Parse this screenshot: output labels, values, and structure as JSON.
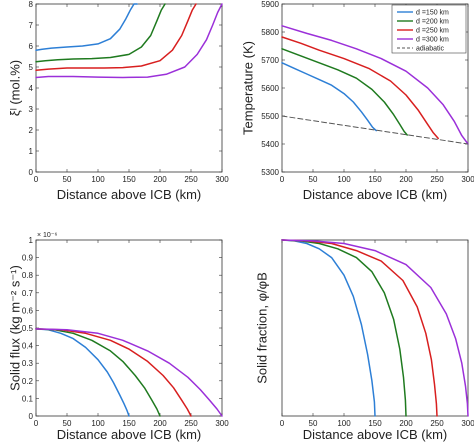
{
  "colors": {
    "d150": "#2d7fd6",
    "d200": "#1f7a1f",
    "d250": "#d81f1f",
    "d300": "#9b30d9",
    "adiabatic": "#555555"
  },
  "chart_data": [
    {
      "id": "composition",
      "type": "line",
      "xlabel": "Distance above ICB (km)",
      "ylabel": "ξˡ (mol.%)",
      "xlim": [
        0,
        300
      ],
      "ylim": [
        0,
        8
      ],
      "xticks": [
        "0",
        "50",
        "100",
        "150",
        "200",
        "250",
        "300"
      ],
      "yticks": [
        "0",
        "1",
        "2",
        "3",
        "4",
        "5",
        "6",
        "7",
        "8"
      ],
      "grid": false,
      "series": [
        {
          "key": "d150",
          "x": [
            0,
            10,
            25,
            50,
            75,
            100,
            120,
            135,
            145,
            152,
            158,
            163
          ],
          "y": [
            5.8,
            5.85,
            5.9,
            5.95,
            6.0,
            6.1,
            6.35,
            6.8,
            7.3,
            7.7,
            8.0,
            8.0
          ]
        },
        {
          "key": "d200",
          "x": [
            0,
            15,
            35,
            60,
            90,
            120,
            150,
            170,
            185,
            195,
            202,
            208
          ],
          "y": [
            5.25,
            5.3,
            5.35,
            5.38,
            5.4,
            5.45,
            5.6,
            5.95,
            6.5,
            7.2,
            7.7,
            8.0
          ]
        },
        {
          "key": "d250",
          "x": [
            0,
            20,
            50,
            80,
            110,
            140,
            170,
            200,
            220,
            235,
            245,
            252,
            258
          ],
          "y": [
            4.85,
            4.9,
            4.95,
            4.95,
            4.95,
            4.97,
            5.05,
            5.3,
            5.8,
            6.5,
            7.2,
            7.7,
            8.0
          ]
        },
        {
          "key": "d300",
          "x": [
            0,
            20,
            60,
            100,
            140,
            180,
            210,
            240,
            260,
            275,
            285,
            293,
            300
          ],
          "y": [
            4.5,
            4.55,
            4.55,
            4.52,
            4.5,
            4.52,
            4.65,
            5.0,
            5.6,
            6.3,
            7.0,
            7.6,
            8.0
          ]
        }
      ]
    },
    {
      "id": "temperature",
      "type": "line",
      "xlabel": "Distance above ICB (km)",
      "ylabel": "Temperature (K)",
      "xlim": [
        0,
        300
      ],
      "ylim": [
        5300,
        5900
      ],
      "xticks": [
        "0",
        "50",
        "100",
        "150",
        "200",
        "250",
        "300"
      ],
      "yticks": [
        "5300",
        "5400",
        "5500",
        "5600",
        "5700",
        "5800",
        "5900"
      ],
      "grid": false,
      "legend": {
        "position": "top-right",
        "entries": [
          "d =150 km",
          "d =200 km",
          "d =250 km",
          "d =300 km",
          "adiabatic"
        ]
      },
      "series": [
        {
          "key": "d150",
          "label": "d =150 km",
          "x": [
            0,
            20,
            40,
            60,
            80,
            100,
            115,
            128,
            138,
            146,
            152
          ],
          "y": [
            5690,
            5670,
            5650,
            5630,
            5610,
            5580,
            5550,
            5515,
            5485,
            5460,
            5448
          ]
        },
        {
          "key": "d200",
          "label": "d =200 km",
          "x": [
            0,
            30,
            60,
            90,
            120,
            145,
            165,
            180,
            190,
            197,
            202
          ],
          "y": [
            5740,
            5715,
            5690,
            5665,
            5635,
            5595,
            5550,
            5505,
            5470,
            5445,
            5432
          ]
        },
        {
          "key": "d250",
          "label": "d =250 km",
          "x": [
            0,
            30,
            60,
            100,
            140,
            175,
            200,
            220,
            235,
            244,
            252
          ],
          "y": [
            5782,
            5760,
            5735,
            5705,
            5670,
            5625,
            5575,
            5520,
            5470,
            5440,
            5420
          ]
        },
        {
          "key": "d300",
          "label": "d =300 km",
          "x": [
            0,
            40,
            80,
            120,
            160,
            200,
            235,
            260,
            278,
            290,
            300
          ],
          "y": [
            5822,
            5795,
            5770,
            5740,
            5705,
            5660,
            5600,
            5540,
            5480,
            5430,
            5400
          ]
        },
        {
          "key": "adiabatic",
          "label": "adiabatic",
          "dashed": true,
          "x": [
            0,
            300
          ],
          "y": [
            5500,
            5400
          ]
        }
      ]
    },
    {
      "id": "solid-flux",
      "type": "line",
      "xlabel": "Distance above ICB (km)",
      "ylabel": "Solid flux (kg m⁻² s⁻¹)",
      "multiplier": "× 10⁻⁶",
      "xlim": [
        0,
        300
      ],
      "ylim": [
        0,
        1
      ],
      "xticks": [
        "0",
        "50",
        "100",
        "150",
        "200",
        "250",
        "300"
      ],
      "yticks": [
        "0",
        "0.1",
        "0.2",
        "0.3",
        "0.4",
        "0.5",
        "0.6",
        "0.7",
        "0.8",
        "0.9",
        "1"
      ],
      "grid": false,
      "series": [
        {
          "key": "d150",
          "x": [
            0,
            20,
            40,
            60,
            80,
            100,
            115,
            125,
            135,
            142,
            147,
            150
          ],
          "y": [
            0.495,
            0.49,
            0.47,
            0.44,
            0.39,
            0.32,
            0.25,
            0.19,
            0.12,
            0.07,
            0.03,
            0
          ]
        },
        {
          "key": "d200",
          "x": [
            0,
            30,
            60,
            90,
            120,
            140,
            160,
            175,
            187,
            195,
            200
          ],
          "y": [
            0.495,
            0.49,
            0.47,
            0.43,
            0.37,
            0.31,
            0.23,
            0.16,
            0.09,
            0.04,
            0
          ]
        },
        {
          "key": "d250",
          "x": [
            0,
            40,
            80,
            120,
            150,
            180,
            205,
            222,
            235,
            244,
            250
          ],
          "y": [
            0.495,
            0.49,
            0.47,
            0.43,
            0.38,
            0.31,
            0.23,
            0.16,
            0.09,
            0.04,
            0
          ]
        },
        {
          "key": "d300",
          "x": [
            0,
            50,
            100,
            140,
            180,
            215,
            245,
            265,
            280,
            292,
            300
          ],
          "y": [
            0.495,
            0.49,
            0.47,
            0.43,
            0.37,
            0.3,
            0.22,
            0.15,
            0.09,
            0.04,
            0
          ]
        }
      ]
    },
    {
      "id": "solid-fraction",
      "type": "line",
      "xlabel": "Distance above ICB (km)",
      "ylabel": "Solid fraction, φ/φB",
      "xlim": [
        0,
        300
      ],
      "ylim": [
        0,
        1
      ],
      "xticks": [
        "0",
        "50",
        "100",
        "150",
        "200",
        "250",
        "300"
      ],
      "yticks": [],
      "grid": false,
      "series": [
        {
          "key": "d150",
          "x": [
            0,
            20,
            40,
            60,
            80,
            100,
            115,
            128,
            138,
            145,
            149,
            150
          ],
          "y": [
            1,
            0.995,
            0.98,
            0.95,
            0.9,
            0.8,
            0.68,
            0.52,
            0.35,
            0.2,
            0.08,
            0
          ]
        },
        {
          "key": "d200",
          "x": [
            0,
            30,
            60,
            90,
            120,
            145,
            165,
            180,
            190,
            196,
            199,
            200
          ],
          "y": [
            1,
            0.995,
            0.98,
            0.95,
            0.9,
            0.82,
            0.7,
            0.55,
            0.38,
            0.22,
            0.09,
            0
          ]
        },
        {
          "key": "d250",
          "x": [
            0,
            40,
            80,
            120,
            160,
            195,
            218,
            232,
            241,
            246,
            249,
            250
          ],
          "y": [
            1,
            0.995,
            0.98,
            0.94,
            0.88,
            0.77,
            0.62,
            0.47,
            0.32,
            0.18,
            0.07,
            0
          ]
        },
        {
          "key": "d300",
          "x": [
            0,
            50,
            100,
            150,
            200,
            240,
            265,
            280,
            290,
            296,
            299,
            300
          ],
          "y": [
            1,
            0.995,
            0.98,
            0.94,
            0.86,
            0.73,
            0.58,
            0.44,
            0.3,
            0.17,
            0.07,
            0
          ]
        }
      ]
    }
  ]
}
